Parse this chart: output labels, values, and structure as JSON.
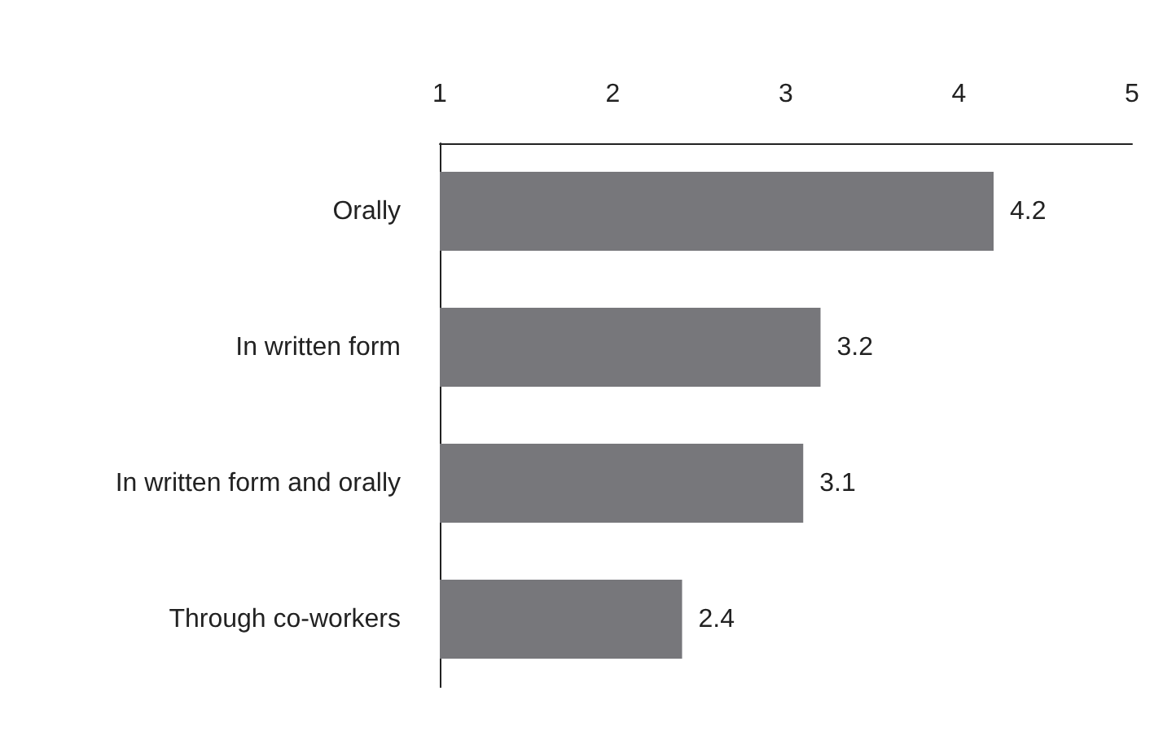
{
  "chart_data": {
    "type": "bar",
    "orientation": "horizontal",
    "categories": [
      "Orally",
      "In written form",
      "In written form and orally",
      "Through co-workers"
    ],
    "values": [
      4.2,
      3.2,
      3.1,
      2.4
    ],
    "color": "#77777b",
    "xlim": [
      1,
      5
    ],
    "xticks": [
      1,
      2,
      3,
      4,
      5
    ],
    "data_labels": true
  }
}
